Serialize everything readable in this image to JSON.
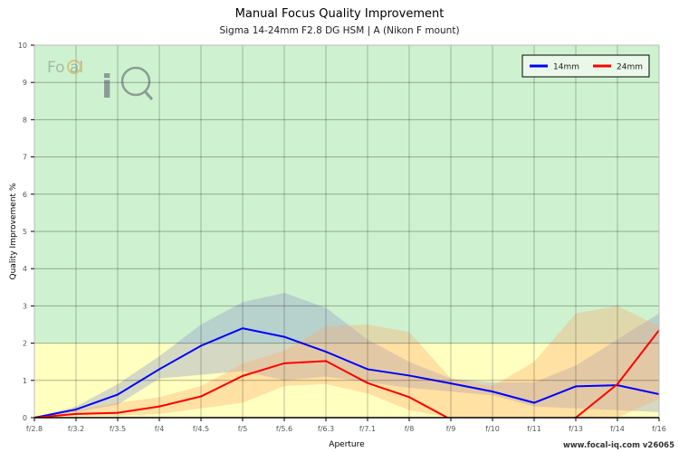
{
  "chart_data": {
    "type": "line",
    "title": "Manual Focus Quality Improvement",
    "subtitle": "Sigma 14-24mm F2.8 DG HSM | A (Nikon F mount)",
    "xlabel": "Aperture",
    "ylabel": "Quality Improvement %",
    "ylim": [
      0,
      10
    ],
    "yticks": [
      0,
      1,
      2,
      3,
      4,
      5,
      6,
      7,
      8,
      9,
      10
    ],
    "grid": true,
    "legend_position": "top-right",
    "categories": [
      "f/2.8",
      "f/3.2",
      "f/3.5",
      "f/4",
      "f/4.5",
      "f/5",
      "f/5.6",
      "f/6.3",
      "f/7.1",
      "f/8",
      "f/9",
      "f/10",
      "f/11",
      "f/13",
      "f/14",
      "f/16"
    ],
    "zones": [
      {
        "from": 0,
        "to": 2,
        "color": "#ffffc0"
      },
      {
        "from": 2,
        "to": 10,
        "color": "#cef2cf"
      }
    ],
    "series": [
      {
        "name": "14mm",
        "color": "#0000ff",
        "band_color": "rgba(150,160,200,0.4)",
        "values": [
          0,
          0.22,
          0.62,
          1.3,
          1.93,
          2.4,
          2.17,
          1.77,
          1.3,
          1.13,
          0.92,
          0.7,
          0.4,
          0.84,
          0.87,
          0.63
        ],
        "band_upper": [
          0,
          0.3,
          0.9,
          1.65,
          2.5,
          3.1,
          3.35,
          2.95,
          2.1,
          1.5,
          1.05,
          0.95,
          0.95,
          1.4,
          2.1,
          2.8
        ],
        "band_lower": [
          0,
          0.15,
          0.35,
          1.05,
          1.15,
          1.25,
          1.0,
          1.1,
          0.95,
          0.8,
          0.7,
          0.6,
          0.3,
          0.25,
          0.2,
          0.15
        ]
      },
      {
        "name": "24mm",
        "color": "#ff0000",
        "band_color": "rgba(255,170,110,0.35)",
        "values": [
          0,
          0.1,
          0.13,
          0.3,
          0.57,
          1.12,
          1.46,
          1.52,
          0.93,
          0.55,
          -0.05,
          -0.5,
          -0.5,
          0,
          0.9,
          2.35
        ],
        "band_upper": [
          0,
          0.2,
          0.4,
          0.55,
          0.85,
          1.45,
          1.8,
          2.45,
          2.5,
          2.3,
          1.05,
          0.85,
          1.5,
          2.8,
          3.0,
          2.45
        ],
        "band_lower": [
          0,
          0.05,
          0.05,
          0.1,
          0.25,
          0.4,
          0.85,
          0.9,
          0.65,
          0.2,
          0,
          0,
          0,
          0,
          0,
          0.5
        ]
      }
    ],
    "logo": "FoCal iQ",
    "watermark": "www.focal-iq.com  v26065"
  }
}
